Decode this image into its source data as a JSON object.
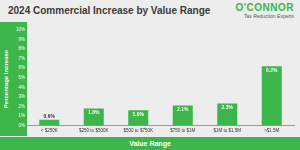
{
  "chart_data": {
    "type": "bar",
    "title": "2024 Commercial Increase by Value Range",
    "annotations": [
      "O'CONNOR",
      "Tax Reduction Experts"
    ],
    "x_label": "Value Range",
    "y_label": "Percentage Increase",
    "categories": [
      "< $250K",
      "$250 to $500K",
      "$500 to $750K",
      "$750 to $1M",
      "$1M to $1.5M",
      ">$1.5M"
    ],
    "values": [
      0.6,
      1.8,
      1.6,
      2.1,
      2.3,
      6.2
    ],
    "value_labels": [
      "0.6%",
      "1.8%",
      "1.6%",
      "2.1%",
      "2.3%",
      "6.2%"
    ],
    "data_labels": true,
    "color": "#3cb54a",
    "ylim": [
      0,
      10
    ],
    "yticks": [
      {
        "value": 0,
        "label": "0%"
      },
      {
        "value": 1,
        "label": "1%"
      },
      {
        "value": 2,
        "label": "2%"
      },
      {
        "value": 3,
        "label": "3%"
      },
      {
        "value": 4,
        "label": "4%"
      },
      {
        "value": 5,
        "label": "5%"
      },
      {
        "value": 6,
        "label": "6%"
      },
      {
        "value": 7,
        "label": "7%"
      },
      {
        "value": 8,
        "label": "8%"
      },
      {
        "value": 9,
        "label": "9%"
      },
      {
        "value": 10,
        "label": "10%"
      }
    ],
    "grid": false
  }
}
